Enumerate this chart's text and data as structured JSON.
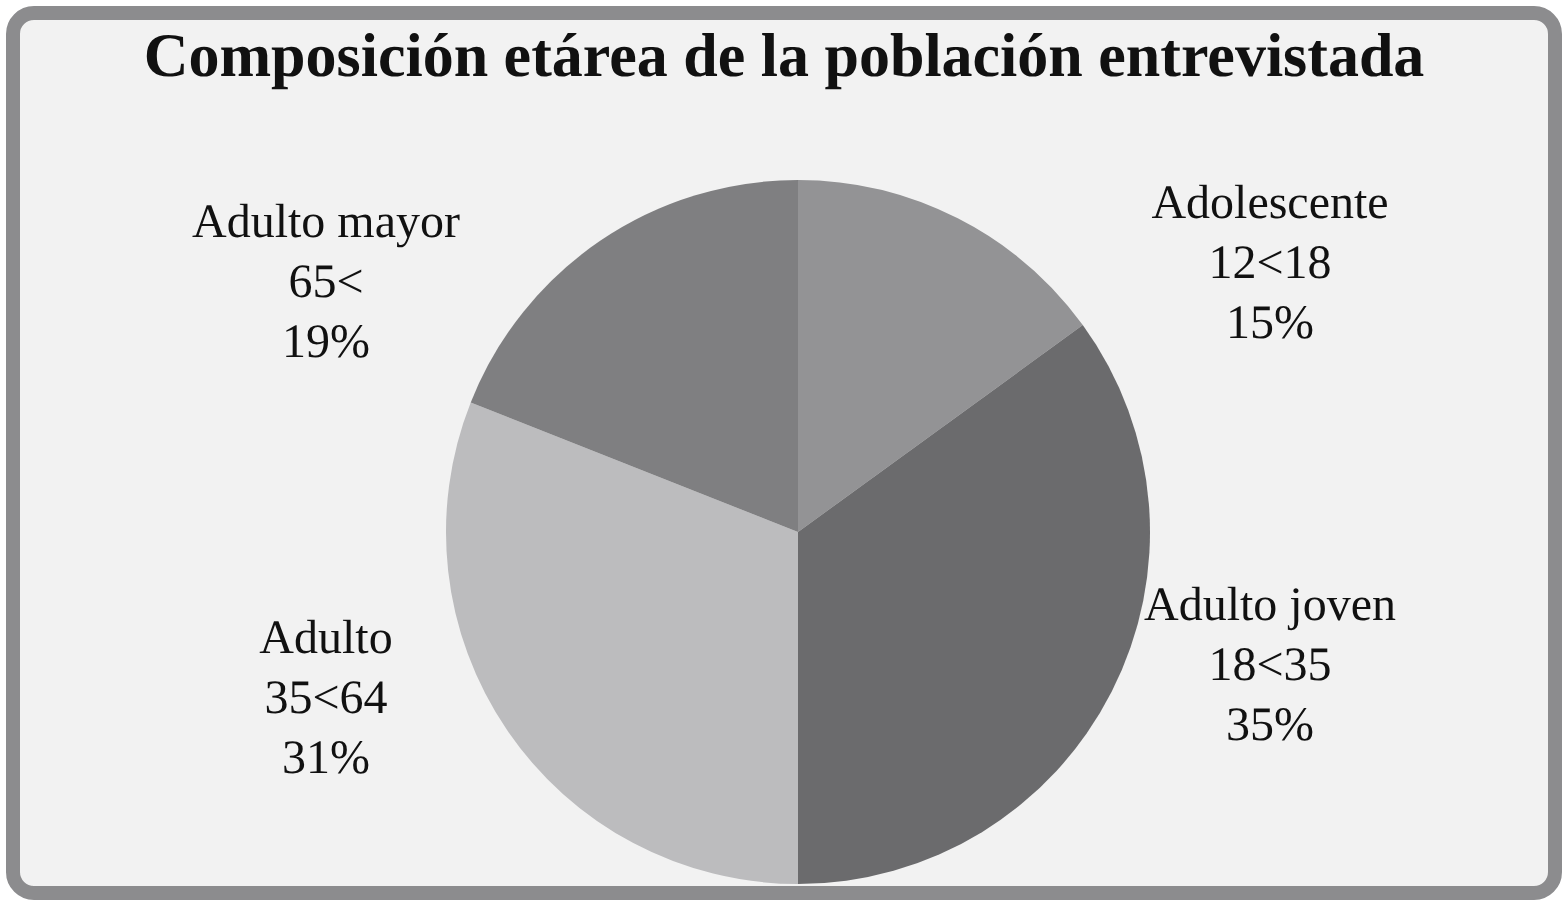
{
  "chart_data": {
    "type": "pie",
    "title": "Composición etárea de la población entrevistada",
    "categories": [
      "Adolescente\n12<18",
      "Adulto joven\n18<35",
      "Adulto\n35<64",
      "Adulto mayor\n65<"
    ],
    "values": [
      15,
      35,
      31,
      19
    ],
    "colors": [
      "#939395",
      "#6b6b6d",
      "#bcbcbe",
      "#7f7f81"
    ],
    "value_labels": [
      "15%",
      "35%",
      "31%",
      "19%"
    ],
    "legend": false
  }
}
